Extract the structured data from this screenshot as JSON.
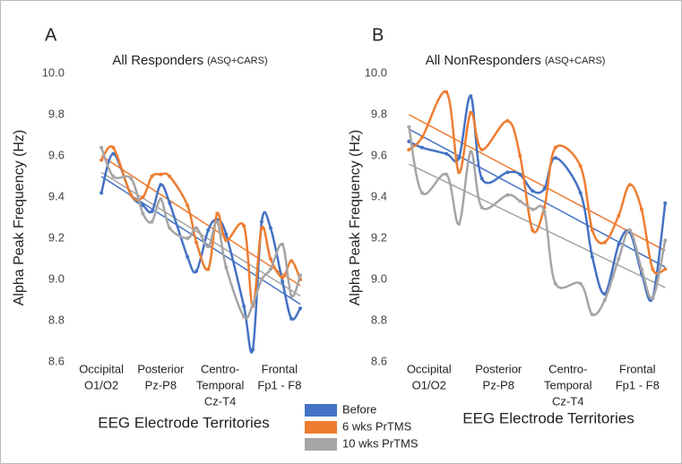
{
  "chart_data": [
    {
      "type": "line",
      "panel": "A",
      "title": "All Responders",
      "subtitle": "(ASQ+CARS)",
      "y_label": "Alpha Peak Frequency (Hz)",
      "x_label": "EEG Electrode Territories",
      "categories": [
        [
          "Occipital",
          "O1/O2"
        ],
        [
          "Posterior",
          "Pz-P8"
        ],
        [
          "Centro-",
          "Temporal",
          "Cz-T4"
        ],
        [
          "Frontal",
          "Fp1 - F8"
        ]
      ],
      "xlim": [
        0,
        4
      ],
      "ylim": [
        8.6,
        10.0
      ],
      "yticks": [
        8.6,
        8.8,
        {
          "value": 9,
          "label": "9.0"
        },
        9.2,
        9.4,
        9.6,
        9.8,
        {
          "value": 10,
          "label": "10.0"
        }
      ],
      "x": [
        0.5,
        0.7,
        1.0,
        1.2,
        1.35,
        1.5,
        1.65,
        1.95,
        2.1,
        2.3,
        2.45,
        2.6,
        2.9,
        3.05,
        3.2,
        3.35,
        3.55,
        3.7,
        3.85
      ],
      "series": [
        {
          "name": "Before",
          "color": "#4472c4",
          "values": [
            9.42,
            9.61,
            9.41,
            9.36,
            9.33,
            9.46,
            9.37,
            9.11,
            9.04,
            9.24,
            9.29,
            9.22,
            8.87,
            8.66,
            9.28,
            9.25,
            8.99,
            8.81,
            8.86
          ],
          "trend": [
            9.5,
            8.88
          ]
        },
        {
          "name": "6 wks PrTMS",
          "color": "#ed7d31",
          "values": [
            9.58,
            9.64,
            9.41,
            9.4,
            9.5,
            9.51,
            9.5,
            9.36,
            9.18,
            9.05,
            9.32,
            9.19,
            9.26,
            8.87,
            9.25,
            9.1,
            9.01,
            9.09,
            9.0
          ],
          "trend": [
            9.6,
            8.97
          ]
        },
        {
          "name": "10 wks PrTMS",
          "color": "#a5a5a5",
          "values": [
            9.64,
            9.5,
            9.49,
            9.32,
            9.28,
            9.39,
            9.25,
            9.2,
            9.25,
            9.16,
            9.28,
            9.06,
            8.82,
            8.88,
            9.0,
            9.05,
            9.17,
            8.92,
            9.02
          ],
          "trend": [
            9.52,
            8.92
          ]
        }
      ]
    },
    {
      "type": "line",
      "panel": "B",
      "title": "All NonResponders",
      "subtitle": "(ASQ+CARS)",
      "y_label": "Alpha Peak Frequency (Hz)",
      "x_label": "EEG Electrode Territories",
      "categories": [
        [
          "Occipital",
          "O1/O2"
        ],
        [
          "Posterior",
          "Pz-P8"
        ],
        [
          "Centro-",
          "Temporal",
          "Cz-T4"
        ],
        [
          "Frontal",
          "Fp1 - F8"
        ]
      ],
      "xlim": [
        0,
        4
      ],
      "ylim": [
        8.6,
        10.0
      ],
      "yticks": [
        8.6,
        8.8,
        {
          "value": 9,
          "label": "9.0"
        },
        9.2,
        9.4,
        9.6,
        9.8,
        {
          "value": 10,
          "label": "10.0"
        }
      ],
      "x": [
        0.21,
        0.4,
        0.75,
        0.93,
        1.1,
        1.26,
        1.63,
        1.81,
        1.99,
        2.16,
        2.32,
        2.68,
        2.85,
        3.03,
        3.23,
        3.39,
        3.56,
        3.72,
        3.9
      ],
      "series": [
        {
          "color": "#4472c4",
          "values": [
            9.67,
            9.64,
            9.61,
            9.59,
            9.89,
            9.49,
            9.52,
            9.51,
            9.43,
            9.44,
            9.59,
            9.42,
            9.11,
            8.93,
            9.17,
            9.23,
            9.03,
            8.91,
            9.37
          ],
          "trend": [
            9.73,
            9.06
          ]
        },
        {
          "color": "#ed7d31",
          "values": [
            9.63,
            9.69,
            9.91,
            9.52,
            9.81,
            9.63,
            9.77,
            9.6,
            9.24,
            9.35,
            9.64,
            9.55,
            9.24,
            9.18,
            9.31,
            9.46,
            9.34,
            9.05,
            9.05
          ],
          "trend": [
            9.8,
            9.14
          ]
        },
        {
          "color": "#a5a5a5",
          "values": [
            9.74,
            9.42,
            9.51,
            9.27,
            9.62,
            9.35,
            9.41,
            9.38,
            9.34,
            9.33,
            8.98,
            8.98,
            8.83,
            8.9,
            9.1,
            9.24,
            9.05,
            8.91,
            9.19
          ],
          "trend": [
            9.56,
            8.96
          ]
        }
      ]
    }
  ]
}
